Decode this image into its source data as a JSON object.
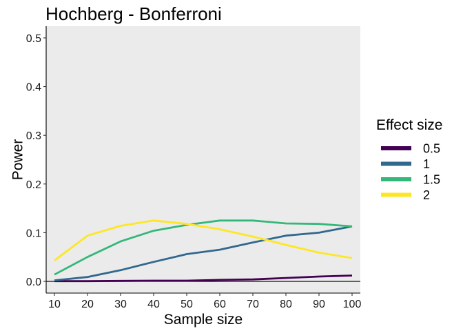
{
  "chart_data": {
    "type": "line",
    "title": "Hochberg - Bonferroni",
    "xlabel": "Sample size",
    "ylabel": "Power",
    "x": [
      10,
      20,
      30,
      40,
      50,
      60,
      70,
      80,
      90,
      100
    ],
    "xlim": [
      7.5,
      102.5
    ],
    "ylim": [
      -0.024,
      0.524
    ],
    "yticks": [
      0.0,
      0.1,
      0.2,
      0.3,
      0.4,
      0.5
    ],
    "yticklabels": [
      "0.0",
      "0.1",
      "0.2",
      "0.3",
      "0.4",
      "0.5"
    ],
    "xticklabels": [
      "10",
      "20",
      "30",
      "40",
      "50",
      "60",
      "70",
      "80",
      "90",
      "100"
    ],
    "hline": 0,
    "grid": false,
    "panel_background": "#ebebeb",
    "legend": {
      "title": "Effect size",
      "position": "right"
    },
    "series": [
      {
        "name": "0.5",
        "color": "#440154",
        "values": [
          0.0005,
          0.0005,
          0.001,
          0.0015,
          0.0015,
          0.003,
          0.004,
          0.007,
          0.01,
          0.012
        ]
      },
      {
        "name": "1",
        "color": "#31688e",
        "values": [
          0.002,
          0.009,
          0.023,
          0.04,
          0.056,
          0.065,
          0.08,
          0.094,
          0.1,
          0.113
        ]
      },
      {
        "name": "1.5",
        "color": "#35b779",
        "values": [
          0.014,
          0.05,
          0.082,
          0.104,
          0.116,
          0.125,
          0.125,
          0.119,
          0.118,
          0.113
        ]
      },
      {
        "name": "2",
        "color": "#fde725",
        "values": [
          0.043,
          0.094,
          0.114,
          0.125,
          0.118,
          0.107,
          0.092,
          0.075,
          0.059,
          0.048
        ]
      }
    ]
  }
}
